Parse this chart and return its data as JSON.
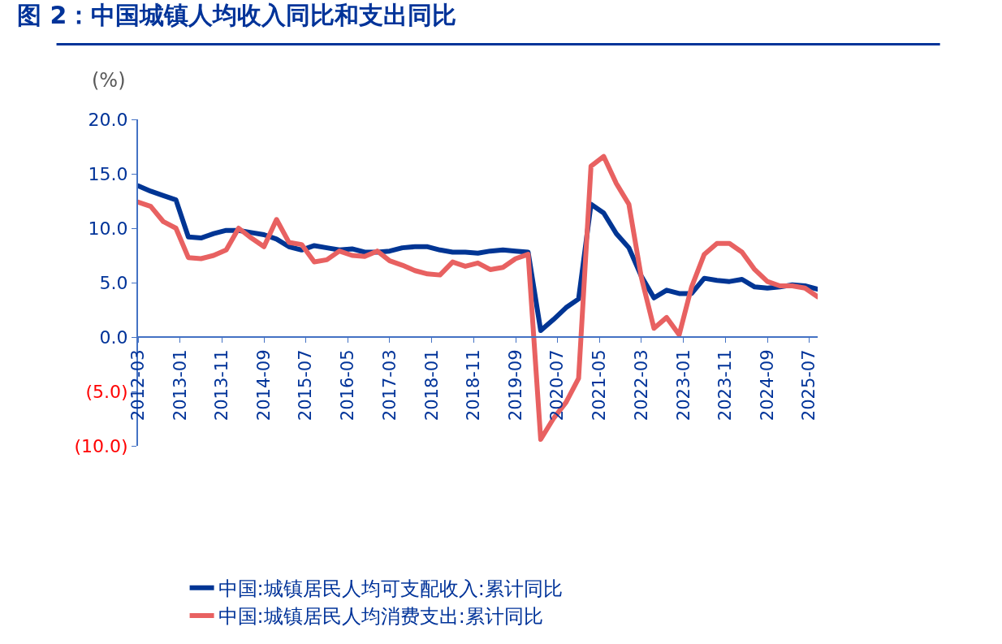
{
  "chart_data": {
    "type": "line",
    "title": "图 2：中国城镇人均收入同比和支出同比",
    "ylabel": "(%)",
    "x": [
      "2012-03",
      "2012-06",
      "2012-09",
      "2012-12",
      "2013-03",
      "2013-06",
      "2013-09",
      "2013-12",
      "2014-03",
      "2014-06",
      "2014-09",
      "2014-12",
      "2015-03",
      "2015-06",
      "2015-09",
      "2015-12",
      "2016-03",
      "2016-06",
      "2016-09",
      "2016-12",
      "2017-03",
      "2017-06",
      "2017-09",
      "2017-12",
      "2018-03",
      "2018-06",
      "2018-09",
      "2018-12",
      "2019-03",
      "2019-06",
      "2019-09",
      "2019-12",
      "2020-03",
      "2020-06",
      "2020-09",
      "2020-12",
      "2021-03",
      "2021-06",
      "2021-09",
      "2021-12",
      "2022-03",
      "2022-06",
      "2022-09",
      "2022-12",
      "2023-03",
      "2023-06",
      "2023-09",
      "2023-12",
      "2024-03",
      "2024-06",
      "2024-09",
      "2024-12",
      "2025-03",
      "2025-06",
      "2025-09"
    ],
    "series": [
      {
        "name": "中国:城镇居民人均可支配收入:累计同比",
        "color": "#003594",
        "values": [
          13.9,
          13.4,
          13.0,
          12.6,
          9.2,
          9.1,
          9.5,
          9.8,
          9.8,
          9.6,
          9.4,
          9.0,
          8.3,
          8.0,
          8.4,
          8.2,
          8.0,
          8.1,
          7.8,
          7.8,
          7.9,
          8.2,
          8.3,
          8.3,
          8.0,
          7.8,
          7.8,
          7.7,
          7.9,
          8.0,
          7.9,
          7.8,
          0.6,
          1.6,
          2.7,
          3.5,
          12.2,
          11.4,
          9.5,
          8.2,
          5.6,
          3.6,
          4.3,
          4.0,
          4.0,
          5.4,
          5.2,
          5.1,
          5.3,
          4.6,
          4.5,
          4.6,
          4.8,
          4.7,
          4.4
        ]
      },
      {
        "name": "中国:城镇居民人均消费支出:累计同比",
        "color": "#e86161",
        "values": [
          12.4,
          12.0,
          10.6,
          10.0,
          7.3,
          7.2,
          7.5,
          8.0,
          10.0,
          9.1,
          8.3,
          10.8,
          8.7,
          8.5,
          6.9,
          7.1,
          7.9,
          7.5,
          7.4,
          7.9,
          7.0,
          6.6,
          6.1,
          5.8,
          5.7,
          6.9,
          6.5,
          6.8,
          6.2,
          6.4,
          7.2,
          7.6,
          -9.4,
          -7.5,
          -6.0,
          -3.8,
          15.7,
          16.6,
          14.1,
          12.2,
          5.5,
          0.8,
          1.8,
          0.2,
          4.6,
          7.6,
          8.6,
          8.6,
          7.8,
          6.2,
          5.1,
          4.7,
          4.7,
          4.5,
          3.7
        ]
      }
    ],
    "xlim": [
      "2012-03",
      "2025-09"
    ],
    "xticks": [
      "2012-03",
      "2013-01",
      "2013-11",
      "2014-09",
      "2015-07",
      "2016-05",
      "2017-03",
      "2018-01",
      "2018-11",
      "2019-09",
      "2020-07",
      "2021-05",
      "2022-03",
      "2023-01",
      "2023-11",
      "2024-09",
      "2025-07"
    ],
    "ylim": [
      -10,
      20
    ],
    "yticks": [
      {
        "value": 20,
        "label": "20.0"
      },
      {
        "value": 15,
        "label": "15.0"
      },
      {
        "value": 10,
        "label": "10.0"
      },
      {
        "value": 5,
        "label": "5.0"
      },
      {
        "value": 0,
        "label": "0.0"
      },
      {
        "value": -5,
        "label": "(5.0)"
      },
      {
        "value": -10,
        "label": "(10.0)"
      }
    ],
    "legend": "bottom",
    "marker": "none",
    "line_style": "solid"
  }
}
